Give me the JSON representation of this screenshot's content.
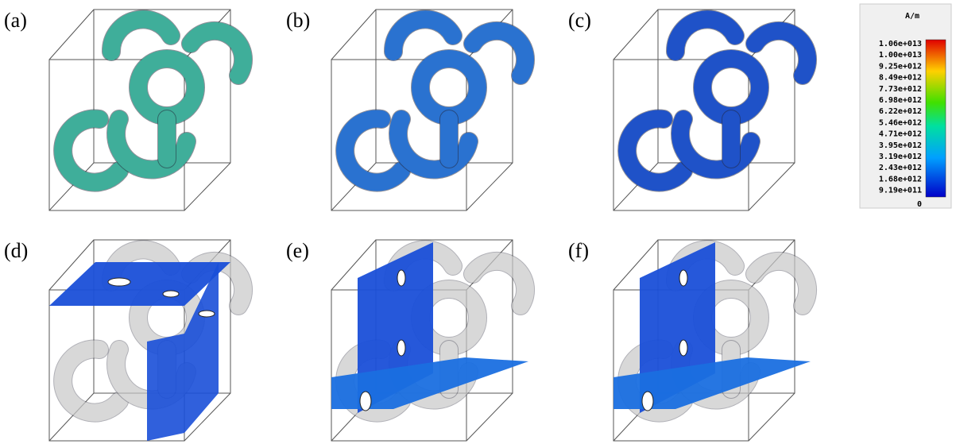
{
  "panels": [
    {
      "label": "(a)"
    },
    {
      "label": "(b)"
    },
    {
      "label": "(c)"
    },
    {
      "label": "(d)"
    },
    {
      "label": "(e)"
    },
    {
      "label": "(f)"
    }
  ],
  "colorbar": {
    "unit": "A/m",
    "labels": [
      "1.06e+013",
      "1.00e+013",
      "9.25e+012",
      "8.49e+012",
      "7.73e+012",
      "6.98e+012",
      "6.22e+012",
      "5.46e+012",
      "4.71e+012",
      "3.95e+012",
      "3.19e+012",
      "2.43e+012",
      "1.68e+012",
      "9.19e+011",
      "0"
    ]
  }
}
